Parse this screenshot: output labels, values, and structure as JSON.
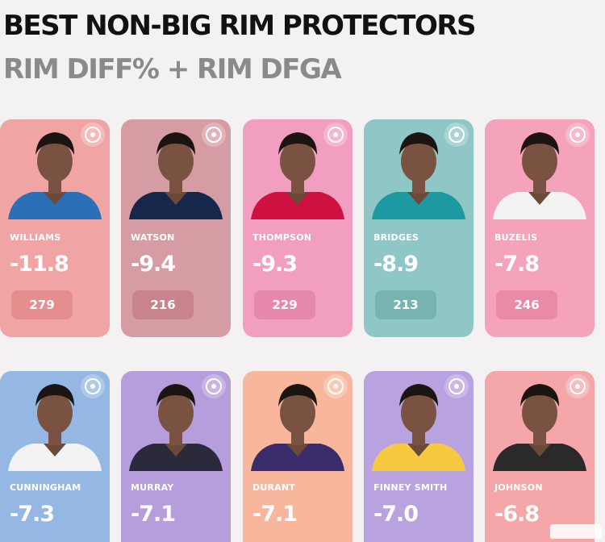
{
  "header": {
    "title": "BEST NON-BIG RIM PROTECTORS",
    "subtitle": "RIM DIFF% + RIM DFGA"
  },
  "players": [
    {
      "name": "WILLIAMS",
      "rim_diff": "-11.8",
      "rim_dfga": "279",
      "team_logo": "thunder-logo-icon",
      "card_color": "#f0a4a4",
      "pill_color": "#e58e8e",
      "jersey_color": "#2a6fb8"
    },
    {
      "name": "WATSON",
      "rim_diff": "-9.4",
      "rim_dfga": "216",
      "team_logo": "nuggets-logo-icon",
      "card_color": "#d69ca3",
      "pill_color": "#c9838c",
      "jersey_color": "#15284b"
    },
    {
      "name": "THOMPSON",
      "rim_diff": "-9.3",
      "rim_dfga": "229",
      "team_logo": "rockets-logo-icon",
      "card_color": "#f29ec1",
      "pill_color": "#e688ad",
      "jersey_color": "#ce1141"
    },
    {
      "name": "BRIDGES",
      "rim_diff": "-8.9",
      "rim_dfga": "213",
      "team_logo": "hornets-logo-icon",
      "card_color": "#8fc7c6",
      "pill_color": "#77b3b1",
      "jersey_color": "#1d9aa1"
    },
    {
      "name": "BUZELIS",
      "rim_diff": "-7.8",
      "rim_dfga": "246",
      "team_logo": "bulls-logo-icon",
      "card_color": "#f5a2bb",
      "pill_color": "#e98aa6",
      "jersey_color": "#f2f2f2"
    },
    {
      "name": "CUNNINGHAM",
      "rim_diff": "-7.3",
      "team_logo": "pistons-logo-icon",
      "card_color": "#94b7e3",
      "jersey_color": "#f2f2f2"
    },
    {
      "name": "MURRAY",
      "rim_diff": "-7.1",
      "team_logo": "kings-logo-icon",
      "card_color": "#b59edb",
      "jersey_color": "#2b2a3a"
    },
    {
      "name": "DURANT",
      "rim_diff": "-7.1",
      "team_logo": "suns-logo-icon",
      "card_color": "#f8b79d",
      "jersey_color": "#3a2b6b"
    },
    {
      "name": "FINNEY SMITH",
      "rim_diff": "-7.0",
      "team_logo": "lakers-logo-icon",
      "card_color": "#b9a2e0",
      "jersey_color": "#f6c940"
    },
    {
      "name": "JOHNSON",
      "rim_diff": "-6.8",
      "team_logo": "hawks-logo-icon",
      "card_color": "#f4a6a8",
      "jersey_color": "#2a2a2a"
    }
  ]
}
